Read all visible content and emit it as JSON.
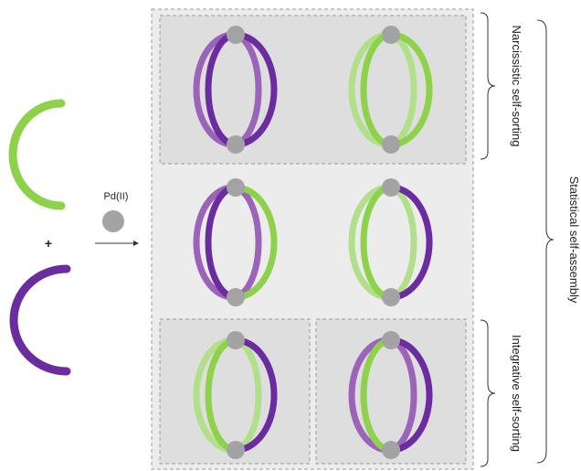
{
  "reagent": {
    "label": "Pd(II)",
    "plus": "+"
  },
  "labels": {
    "narcissistic": "Narcissistic self-sorting",
    "integrative": "Integrative self-sorting",
    "statistical": "Statistical self-assembly"
  },
  "colors": {
    "green": "#8ed14a",
    "green_light": "#b2df8a",
    "purple": "#6a2c9e",
    "purple_light": "#9b64b8",
    "node": "#a3a3a3",
    "panel_outer": "#ececec",
    "panel_inner": "#dedede"
  },
  "cages": [
    {
      "name": "cage-purple-purple",
      "back": "purple",
      "front": "purple",
      "group": "narcissistic"
    },
    {
      "name": "cage-green-green",
      "back": "green",
      "front": "green",
      "group": "narcissistic"
    },
    {
      "name": "cage-purple-green-mixed",
      "back": "purple",
      "front": "purple-green",
      "group": "statistical"
    },
    {
      "name": "cage-green-purple-mixed",
      "back": "green",
      "front": "green-purple",
      "group": "statistical"
    },
    {
      "name": "cage-green-purple-integrative",
      "back": "green",
      "front": "green-purple",
      "group": "integrative"
    },
    {
      "name": "cage-purple-green-integrative",
      "back": "purple",
      "front": "green-purple",
      "group": "integrative"
    }
  ]
}
